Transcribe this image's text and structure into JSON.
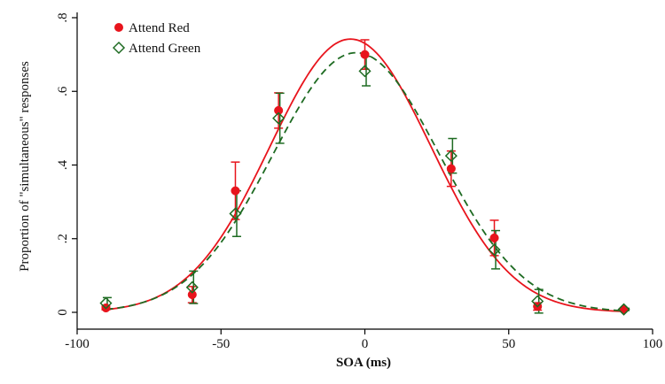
{
  "chart_data": {
    "type": "scatter",
    "xlabel": "SOA (ms)",
    "ylabel": "Proportion of \"simultaneous\" responses",
    "xlim": [
      -100,
      100
    ],
    "ylim": [
      0,
      0.8
    ],
    "xticks": [
      -100,
      -50,
      0,
      50,
      100
    ],
    "xtick_labels": [
      "-100",
      "-50",
      "0",
      "50",
      "100"
    ],
    "yticks": [
      0,
      0.2,
      0.4,
      0.6,
      0.8
    ],
    "ytick_labels": [
      "0",
      ".2",
      ".4",
      ".6",
      ".8"
    ],
    "grid": false,
    "legend_position": "top-left",
    "series": [
      {
        "name": "Attend Red",
        "marker": "filled-circle",
        "color": "#e8141c",
        "error_color": "#e8141c",
        "fit_color": "#e8141c",
        "fit_style": "solid",
        "x": [
          -90,
          -60,
          -45,
          -30,
          0,
          30,
          45,
          60,
          90
        ],
        "y": [
          0.012,
          0.048,
          0.33,
          0.548,
          0.7,
          0.39,
          0.202,
          0.016,
          0.008
        ],
        "err": [
          0.005,
          0.022,
          0.078,
          0.048,
          0.04,
          0.048,
          0.048,
          0.01,
          0.003
        ],
        "fit": {
          "peak": 0.742,
          "mu": -5,
          "sigma": 28
        }
      },
      {
        "name": "Attend Green",
        "marker": "hollow-diamond",
        "color": "#1e6b22",
        "error_color": "#1e6b22",
        "fit_color": "#1e6b22",
        "fit_style": "dashed",
        "x": [
          -90,
          -60,
          -45,
          -30,
          0,
          30,
          45,
          60,
          90
        ],
        "y": [
          0.025,
          0.068,
          0.268,
          0.527,
          0.655,
          0.425,
          0.17,
          0.03,
          0.008
        ],
        "err": [
          0.015,
          0.044,
          0.062,
          0.068,
          0.04,
          0.047,
          0.052,
          0.032,
          0.003
        ],
        "fit": {
          "peak": 0.705,
          "mu": -3,
          "sigma": 29
        }
      }
    ]
  }
}
